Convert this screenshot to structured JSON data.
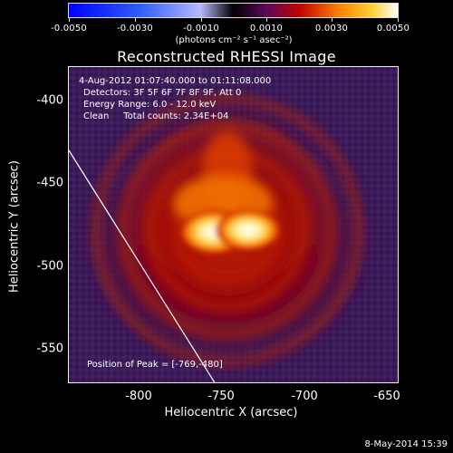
{
  "colorbar": {
    "ticks": [
      "-0.0050",
      "-0.0030",
      "-0.0010",
      "0.0010",
      "0.0030",
      "0.0050"
    ],
    "units": "(photons cm⁻² s⁻¹ asec⁻²)"
  },
  "title": "Reconstructed RHESSI Image",
  "info": {
    "time": "4-Aug-2012 01:07:40.000 to 01:11:08.000",
    "detectors": "Detectors: 3F 5F 6F 7F 8F 9F, Att 0",
    "energy": "Energy Range: 6.0 - 12.0 keV",
    "clean": "Clean     Total counts: 2.34E+04"
  },
  "peak_text": "Position of Peak = [-769,-480]",
  "axes": {
    "xlabel": "Heliocentric X (arcsec)",
    "ylabel": "Heliocentric Y (arcsec)",
    "x_ticks": [
      "-800",
      "-750",
      "-700",
      "-650"
    ],
    "y_ticks": [
      "-400",
      "-450",
      "-500",
      "-550"
    ]
  },
  "timestamp": "8-May-2014 15:39"
}
